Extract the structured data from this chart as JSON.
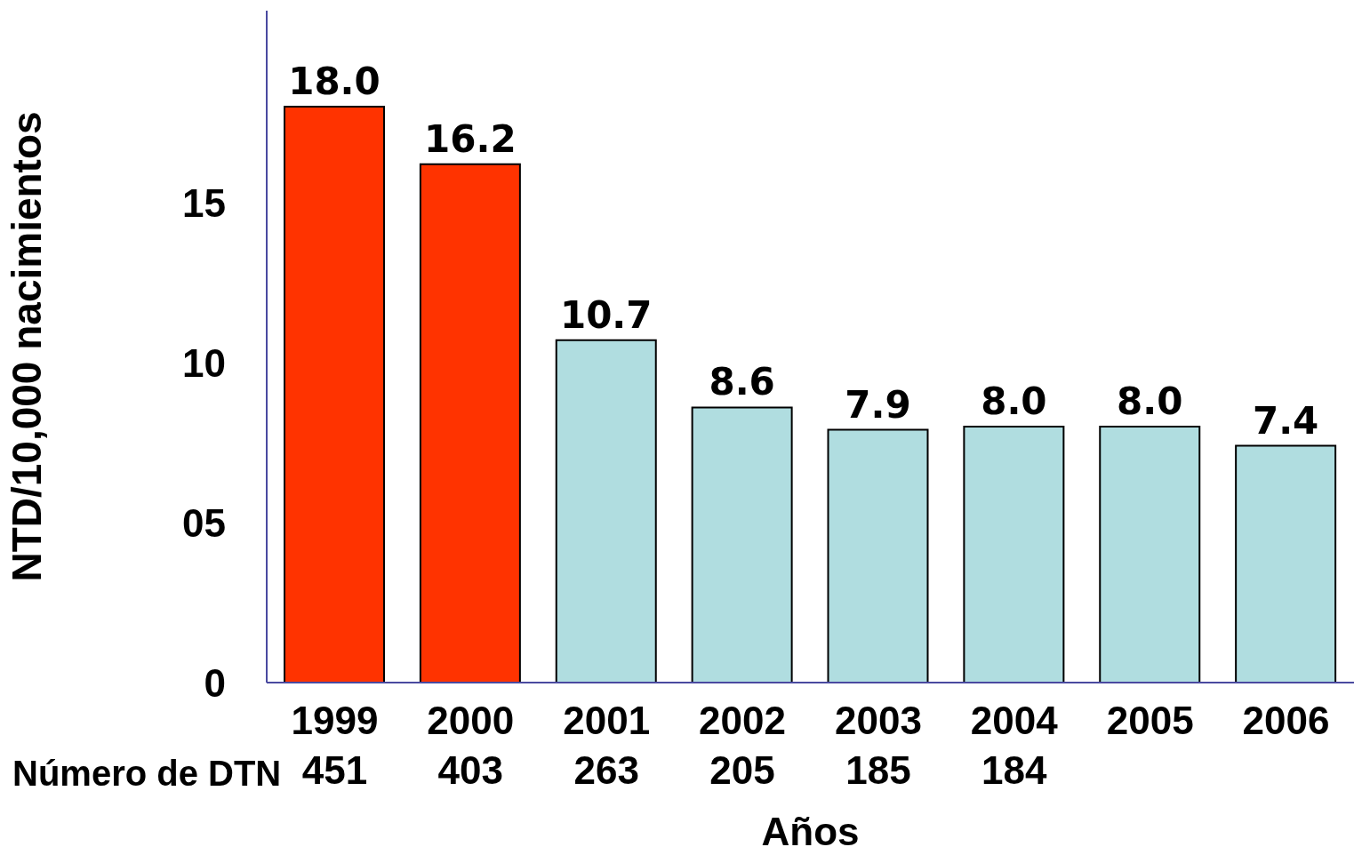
{
  "chart_data": {
    "type": "bar",
    "xlabel": "Años",
    "ylabel": "NTD/10,000 nacimientos",
    "categories": [
      "1999",
      "2000",
      "2001",
      "2002",
      "2003",
      "2004",
      "2005",
      "2006"
    ],
    "values": [
      18.0,
      16.2,
      10.7,
      8.6,
      7.9,
      8.0,
      8.0,
      7.4
    ],
    "colors": [
      "#ff3300",
      "#ff3300",
      "#b0dde0",
      "#b0dde0",
      "#b0dde0",
      "#b0dde0",
      "#b0dde0",
      "#b0dde0"
    ],
    "ylim": [
      0,
      21
    ],
    "yticks": [
      0,
      {
        "value": 5,
        "label": "05"
      },
      10,
      15
    ],
    "value_labels": [
      "18.0",
      "16.2",
      "10.7",
      "8.6",
      "7.9",
      "8.0",
      "8.0",
      "7.4"
    ],
    "grid": false,
    "legend": false,
    "annotations": [
      "Número de DTN",
      "451",
      "403",
      "263",
      "205",
      "185",
      "184"
    ]
  }
}
